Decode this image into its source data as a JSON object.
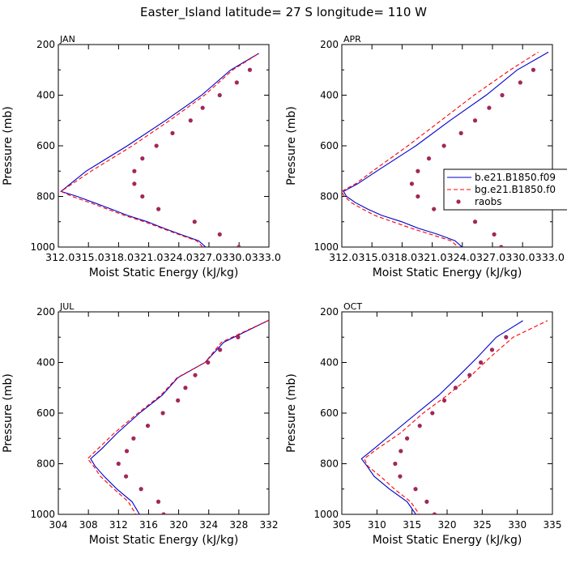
{
  "title": "Easter_Island  latitude= 27 S longitude= 110 W",
  "xlabel": "Moist Static Energy (kJ/kg)",
  "ylabel": "Pressure (mb)",
  "colors": {
    "series1": "#0000cc",
    "series2": "#ff0000",
    "obs": "#a0285a"
  },
  "legend": {
    "placement": "APR panel, right",
    "entries": [
      "b.e21.B1850.f09",
      "bg.e21.B1850.f0",
      "raobs"
    ]
  },
  "chart_data": [
    {
      "type": "line",
      "panel": "JAN",
      "xlim": [
        312.03,
        333.0
      ],
      "ylim": [
        1000,
        200
      ],
      "xticks": [
        312.03,
        315.03,
        318.03,
        321.03,
        324.03,
        327.03,
        330.03,
        333.0
      ],
      "xtick_labels": [
        "312.03",
        "15.03",
        "18.03",
        "21.03",
        "24.03",
        "27.03",
        "30.03",
        "33.0"
      ],
      "yticks": [
        200,
        400,
        600,
        800,
        1000
      ],
      "series": [
        {
          "style": "solid",
          "color": "#0000cc",
          "points": [
            [
              326.7,
              1000
            ],
            [
              326.0,
              975
            ],
            [
              324.2,
              950
            ],
            [
              322.5,
              925
            ],
            [
              320.9,
              900
            ],
            [
              318.9,
              875
            ],
            [
              317.3,
              850
            ],
            [
              315.6,
              825
            ],
            [
              313.9,
              800
            ],
            [
              312.3,
              780
            ],
            [
              314.8,
              700
            ],
            [
              318.9,
              600
            ],
            [
              322.7,
              500
            ],
            [
              326.3,
              400
            ],
            [
              329.2,
              300
            ],
            [
              332.0,
              235
            ]
          ]
        },
        {
          "style": "dashed",
          "color": "#ff0000",
          "points": [
            [
              326.4,
              1000
            ],
            [
              325.8,
              975
            ],
            [
              324.0,
              950
            ],
            [
              322.3,
              925
            ],
            [
              320.6,
              900
            ],
            [
              318.6,
              875
            ],
            [
              316.9,
              850
            ],
            [
              315.2,
              825
            ],
            [
              313.4,
              800
            ],
            [
              312.3,
              780
            ],
            [
              315.3,
              700
            ],
            [
              319.4,
              600
            ],
            [
              323.1,
              500
            ],
            [
              326.6,
              400
            ],
            [
              329.4,
              300
            ],
            [
              332.0,
              235
            ]
          ]
        },
        {
          "style": "markers",
          "color": "#a0285a",
          "points": [
            [
              330.0,
              1000
            ],
            [
              328.1,
              950
            ],
            [
              325.6,
              900
            ],
            [
              322.0,
              850
            ],
            [
              320.4,
              800
            ],
            [
              319.6,
              750
            ],
            [
              319.6,
              700
            ],
            [
              320.4,
              650
            ],
            [
              321.8,
              600
            ],
            [
              323.4,
              550
            ],
            [
              325.2,
              500
            ],
            [
              326.4,
              450
            ],
            [
              328.1,
              400
            ],
            [
              329.8,
              350
            ],
            [
              331.1,
              300
            ]
          ]
        }
      ]
    },
    {
      "type": "line",
      "panel": "APR",
      "xlim": [
        312.03,
        333.0
      ],
      "ylim": [
        1000,
        200
      ],
      "xticks": [
        312.03,
        315.03,
        318.03,
        321.03,
        324.03,
        327.03,
        330.03,
        333.0
      ],
      "xtick_labels": [
        "312.03",
        "15.03",
        "18.03",
        "21.03",
        "24.03",
        "27.03",
        "30.03",
        "33.0"
      ],
      "yticks": [
        200,
        400,
        600,
        800,
        1000
      ],
      "series": [
        {
          "style": "solid",
          "color": "#0000cc",
          "points": [
            [
              324.3,
              1010
            ],
            [
              323.3,
              975
            ],
            [
              321.6,
              950
            ],
            [
              319.6,
              925
            ],
            [
              318.0,
              900
            ],
            [
              316.0,
              875
            ],
            [
              314.6,
              850
            ],
            [
              313.4,
              825
            ],
            [
              312.5,
              800
            ],
            [
              312.2,
              780
            ],
            [
              313.6,
              750
            ],
            [
              315.5,
              700
            ],
            [
              319.4,
              600
            ],
            [
              322.8,
              500
            ],
            [
              326.4,
              400
            ],
            [
              329.5,
              300
            ],
            [
              332.6,
              230
            ]
          ]
        },
        {
          "style": "dashed",
          "color": "#ff0000",
          "points": [
            [
              323.9,
              1010
            ],
            [
              322.9,
              975
            ],
            [
              320.9,
              950
            ],
            [
              318.9,
              925
            ],
            [
              317.1,
              900
            ],
            [
              315.3,
              875
            ],
            [
              314.1,
              850
            ],
            [
              313.0,
              825
            ],
            [
              312.3,
              800
            ],
            [
              312.0,
              780
            ],
            [
              313.4,
              750
            ],
            [
              315.1,
              700
            ],
            [
              318.6,
              600
            ],
            [
              321.9,
              500
            ],
            [
              325.2,
              400
            ],
            [
              328.8,
              300
            ],
            [
              331.6,
              230
            ]
          ]
        },
        {
          "style": "markers",
          "color": "#a0285a",
          "points": [
            [
              327.9,
              1000
            ],
            [
              327.2,
              950
            ],
            [
              325.3,
              900
            ],
            [
              321.2,
              850
            ],
            [
              319.6,
              800
            ],
            [
              319.0,
              750
            ],
            [
              319.6,
              700
            ],
            [
              320.7,
              650
            ],
            [
              322.2,
              600
            ],
            [
              323.9,
              550
            ],
            [
              325.3,
              500
            ],
            [
              326.7,
              450
            ],
            [
              328.0,
              400
            ],
            [
              329.8,
              350
            ],
            [
              331.1,
              300
            ]
          ]
        }
      ]
    },
    {
      "type": "line",
      "panel": "JUL",
      "xlim": [
        304,
        332
      ],
      "ylim": [
        1000,
        200
      ],
      "xticks": [
        304,
        308,
        312,
        316,
        320,
        324,
        328,
        332
      ],
      "xtick_labels": [
        "304",
        "308",
        "312",
        "316",
        "320",
        "324",
        "328",
        "332"
      ],
      "yticks": [
        200,
        400,
        600,
        800,
        1000
      ],
      "series": [
        {
          "style": "solid",
          "color": "#0000cc",
          "points": [
            [
              315.0,
              1010
            ],
            [
              313.8,
              950
            ],
            [
              311.8,
              900
            ],
            [
              310.1,
              850
            ],
            [
              308.9,
              810
            ],
            [
              308.3,
              780
            ],
            [
              309.8,
              740
            ],
            [
              311.8,
              680
            ],
            [
              314.8,
              600
            ],
            [
              317.8,
              530
            ],
            [
              319.9,
              460
            ],
            [
              323.5,
              400
            ],
            [
              326.0,
              320
            ],
            [
              332.0,
              233
            ]
          ]
        },
        {
          "style": "dashed",
          "color": "#ff0000",
          "points": [
            [
              314.5,
              1010
            ],
            [
              313.3,
              950
            ],
            [
              311.4,
              900
            ],
            [
              309.6,
              850
            ],
            [
              308.7,
              810
            ],
            [
              307.9,
              780
            ],
            [
              309.3,
              740
            ],
            [
              311.4,
              680
            ],
            [
              314.6,
              600
            ],
            [
              317.6,
              530
            ],
            [
              319.8,
              460
            ],
            [
              323.5,
              400
            ],
            [
              325.7,
              320
            ],
            [
              332.0,
              233
            ]
          ]
        },
        {
          "style": "markers",
          "color": "#a0285a",
          "points": [
            [
              318.0,
              1000
            ],
            [
              317.3,
              950
            ],
            [
              315.0,
              900
            ],
            [
              313.0,
              850
            ],
            [
              312.0,
              800
            ],
            [
              313.1,
              750
            ],
            [
              314.0,
              700
            ],
            [
              315.9,
              650
            ],
            [
              317.9,
              600
            ],
            [
              319.9,
              550
            ],
            [
              320.9,
              500
            ],
            [
              322.2,
              450
            ],
            [
              323.9,
              400
            ],
            [
              325.5,
              350
            ],
            [
              327.9,
              300
            ]
          ]
        }
      ]
    },
    {
      "type": "line",
      "panel": "OCT",
      "xlim": [
        305,
        335
      ],
      "ylim": [
        1000,
        200
      ],
      "xticks": [
        305,
        310,
        315,
        320,
        325,
        330,
        335
      ],
      "xtick_labels": [
        "305",
        "310",
        "315",
        "320",
        "325",
        "330",
        "335"
      ],
      "yticks": [
        200,
        400,
        600,
        800,
        1000
      ],
      "series": [
        {
          "style": "solid",
          "color": "#0000cc",
          "points": [
            [
              315.8,
              1010
            ],
            [
              314.3,
              950
            ],
            [
              311.8,
              900
            ],
            [
              309.6,
              850
            ],
            [
              308.6,
              810
            ],
            [
              307.8,
              780
            ],
            [
              309.6,
              740
            ],
            [
              312.2,
              680
            ],
            [
              315.7,
              600
            ],
            [
              318.8,
              530
            ],
            [
              321.4,
              460
            ],
            [
              324.3,
              380
            ],
            [
              327.0,
              300
            ],
            [
              330.8,
              235
            ]
          ]
        },
        {
          "style": "dashed",
          "color": "#ff0000",
          "points": [
            [
              316.3,
              1010
            ],
            [
              314.8,
              950
            ],
            [
              312.5,
              900
            ],
            [
              310.5,
              850
            ],
            [
              308.7,
              810
            ],
            [
              308.2,
              780
            ],
            [
              310.1,
              740
            ],
            [
              313.3,
              680
            ],
            [
              316.6,
              600
            ],
            [
              320.0,
              530
            ],
            [
              323.1,
              460
            ],
            [
              326.1,
              380
            ],
            [
              329.4,
              300
            ],
            [
              334.3,
              235
            ]
          ]
        },
        {
          "style": "markers",
          "color": "#a0285a",
          "points": [
            [
              318.2,
              1000
            ],
            [
              317.1,
              950
            ],
            [
              315.5,
              900
            ],
            [
              313.3,
              850
            ],
            [
              312.6,
              800
            ],
            [
              313.4,
              750
            ],
            [
              314.3,
              700
            ],
            [
              316.1,
              650
            ],
            [
              317.9,
              600
            ],
            [
              319.6,
              550
            ],
            [
              321.2,
              500
            ],
            [
              323.2,
              450
            ],
            [
              324.8,
              400
            ],
            [
              326.4,
              350
            ],
            [
              328.4,
              300
            ]
          ]
        }
      ]
    }
  ]
}
